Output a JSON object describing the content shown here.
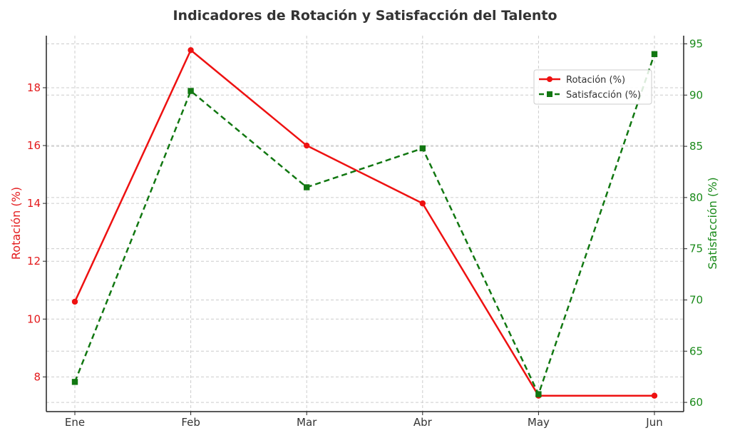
{
  "chart_data": {
    "type": "line",
    "title": "Indicadores de Rotación y Satisfacción del Talento",
    "categories": [
      "Ene",
      "Feb",
      "Mar",
      "Abr",
      "May",
      "Jun"
    ],
    "y_left": {
      "label": "Rotación (%)",
      "range": [
        6.8,
        19.8
      ],
      "ticks": [
        8,
        10,
        12,
        14,
        16,
        18
      ],
      "color": "#e31a1c"
    },
    "y_right": {
      "label": "Satisfacción (%)",
      "range": [
        59.1,
        95.8
      ],
      "ticks": [
        60,
        65,
        70,
        75,
        80,
        85,
        90,
        95
      ],
      "color": "#1a8a1a"
    },
    "series": [
      {
        "name": "Rotación (%)",
        "axis": "left",
        "color": "#ee1111",
        "marker": "circle",
        "dash": "solid",
        "values": [
          10.6,
          19.3,
          16.0,
          14.0,
          7.35,
          7.35
        ]
      },
      {
        "name": "Satisfacción (%)",
        "axis": "right",
        "color": "#117711",
        "marker": "square",
        "dash": "dashed",
        "values": [
          62.0,
          90.4,
          81.0,
          84.8,
          60.8,
          94.0
        ]
      }
    ],
    "grid": true,
    "legend_position": "top-right"
  }
}
